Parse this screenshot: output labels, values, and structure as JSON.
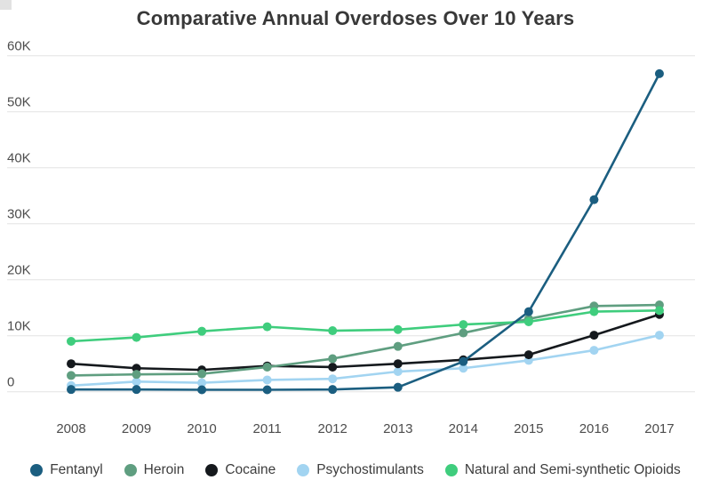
{
  "title": "Comparative Annual Overdoses Over 10 Years",
  "chart_data": {
    "type": "line",
    "x": [
      2008,
      2009,
      2010,
      2011,
      2012,
      2013,
      2014,
      2015,
      2016,
      2017
    ],
    "series": [
      {
        "name": "Fentanyl",
        "color": "#1b5e80",
        "values": [
          400,
          400,
          350,
          350,
          400,
          800,
          5400,
          14300,
          34300,
          56800
        ]
      },
      {
        "name": "Heroin",
        "color": "#5f9e80",
        "values": [
          2900,
          3100,
          3200,
          4400,
          5900,
          8100,
          10500,
          13000,
          15300,
          15500
        ]
      },
      {
        "name": "Cocaine",
        "color": "#15191d",
        "values": [
          5000,
          4200,
          3900,
          4600,
          4400,
          5000,
          5700,
          6600,
          10100,
          13800
        ]
      },
      {
        "name": "Psychostimulants",
        "color": "#a2d4f1",
        "values": [
          1100,
          1800,
          1600,
          2100,
          2300,
          3600,
          4200,
          5600,
          7400,
          10100
        ]
      },
      {
        "name": "Natural and Semi-synthetic Opioids",
        "color": "#3fcd7d",
        "values": [
          9000,
          9700,
          10800,
          11600,
          10900,
          11100,
          12000,
          12500,
          14300,
          14500
        ]
      }
    ],
    "ylim": [
      0,
      60000
    ],
    "ytick_step": 10000,
    "ytick_labels": [
      "0",
      "10K",
      "20K",
      "30K",
      "40K",
      "50K",
      "60K"
    ],
    "grid": true,
    "legend_position": "bottom",
    "title": "Comparative Annual Overdoses Over 10 Years"
  },
  "colors": {
    "background": "#ffffff",
    "gridline": "#e4e4e4",
    "tick_label": "#4d4d4d",
    "title": "#383838"
  }
}
